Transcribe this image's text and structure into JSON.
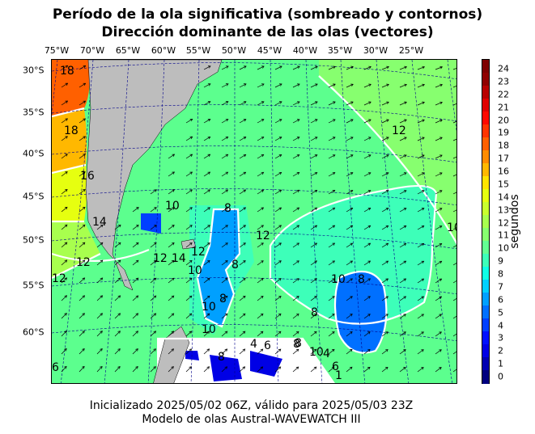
{
  "title_line1": "Período de la ola significativa (sombreado y contornos)",
  "title_line2": "Dirección dominante de las olas (vectores)",
  "lon_labels": [
    "75°W",
    "70°W",
    "65°W",
    "60°W",
    "55°W",
    "50°W",
    "45°W",
    "40°W",
    "35°W",
    "30°W",
    "25°W"
  ],
  "lat_labels": [
    "30°S",
    "35°S",
    "40°S",
    "45°S",
    "50°S",
    "55°S",
    "60°S"
  ],
  "colorbar": {
    "label": "segundos",
    "ticks": [
      "0",
      "1",
      "2",
      "3",
      "4",
      "5",
      "6",
      "7",
      "8",
      "9",
      "10",
      "11",
      "12",
      "13",
      "14",
      "15",
      "16",
      "17",
      "18",
      "19",
      "20",
      "21",
      "22",
      "23",
      "24"
    ],
    "colors": [
      "#00007f",
      "#0000b2",
      "#0000e5",
      "#0010ff",
      "#0040ff",
      "#0070ff",
      "#00a0ff",
      "#00d0ff",
      "#10ffe6",
      "#3dffb9",
      "#63ff93",
      "#87ff6f",
      "#a8ff4e",
      "#c9ff2e",
      "#e6ff10",
      "#ffe400",
      "#ffb800",
      "#ff8c00",
      "#ff6000",
      "#ff3400",
      "#ff0800",
      "#e00000",
      "#b80000",
      "#900000",
      "#7f0000"
    ]
  },
  "contour_labels": [
    "18",
    "18",
    "16",
    "14",
    "12",
    "12",
    "10",
    "8",
    "12",
    "10",
    "14",
    "12",
    "8",
    "12",
    "10",
    "8",
    "8",
    "10",
    "8",
    "10",
    "8",
    "4",
    "6",
    "8",
    "10",
    "4",
    "6",
    "1",
    "12",
    "10",
    "6",
    "8",
    "15"
  ],
  "footer_line1": "Inicializado 2025/05/02 06Z, válido para 2025/05/03 23Z",
  "footer_line2": "Modelo de olas Austral-WAVEWATCH III",
  "colors": {
    "land": "#bdbdbd",
    "ocean_base": "#5cff8e",
    "contour": "#ffffff",
    "graticule": "#00008b",
    "arrow": "#000000"
  }
}
